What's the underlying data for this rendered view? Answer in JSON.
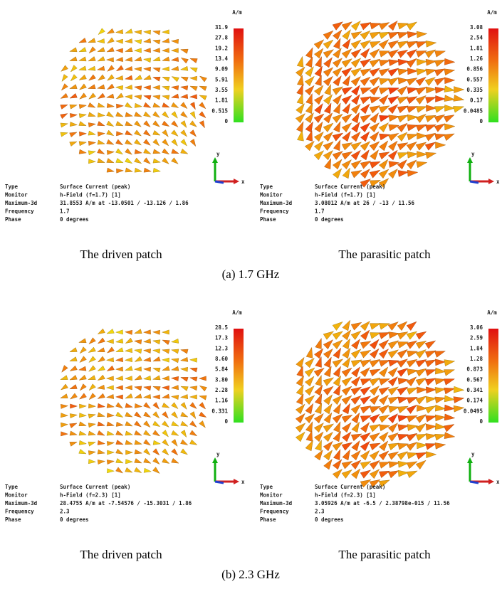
{
  "groups": [
    {
      "caption": "(a) 1.7 GHz",
      "panels": [
        {
          "caption": "The driven patch",
          "unit": "A/m",
          "legend": [
            "31.9",
            "27.8",
            "19.2",
            "13.4",
            "9.09",
            "5.91",
            "3.55",
            "1.81",
            "0.515",
            "0"
          ],
          "info": [
            [
              "Type",
              "Surface Current (peak)"
            ],
            [
              "Monitor",
              "h-Field (f=1.7) [1]"
            ],
            [
              "Maximum-3d",
              "31.8553 A/m at -13.0501 / -13.126 / 1.86"
            ],
            [
              "Frequency",
              "1.7"
            ],
            [
              "Phase",
              "0 degrees"
            ]
          ],
          "axes": [
            "y",
            "x"
          ]
        },
        {
          "caption": "The parasitic patch",
          "unit": "A/m",
          "legend": [
            "3.08",
            "2.54",
            "1.81",
            "1.26",
            "0.856",
            "0.557",
            "0.335",
            "0.17",
            "0.0485",
            "0"
          ],
          "info": [
            [
              "Type",
              "Surface Current (peak)"
            ],
            [
              "Monitor",
              "h-Field (f=1.7) [1]"
            ],
            [
              "Maximum-3d",
              "3.08012 A/m at 26 / -13 / 11.56"
            ],
            [
              "Frequency",
              "1.7"
            ],
            [
              "Phase",
              "0 degrees"
            ]
          ],
          "axes": [
            "y",
            "x"
          ]
        }
      ]
    },
    {
      "caption": "(b) 2.3 GHz",
      "panels": [
        {
          "caption": "The driven patch",
          "unit": "A/m",
          "legend": [
            "28.5",
            "17.3",
            "12.3",
            "8.60",
            "5.84",
            "3.80",
            "2.28",
            "1.16",
            "0.331",
            "0"
          ],
          "info": [
            [
              "Type",
              "Surface Current (peak)"
            ],
            [
              "Monitor",
              "h-Field (f=2.3) [1]"
            ],
            [
              "Maximum-3d",
              "28.4755 A/m at -7.54576 / -15.3031 / 1.86"
            ],
            [
              "Frequency",
              "2.3"
            ],
            [
              "Phase",
              "0 degrees"
            ]
          ],
          "axes": [
            "y",
            "x"
          ]
        },
        {
          "caption": "The parasitic patch",
          "unit": "A/m",
          "legend": [
            "3.06",
            "2.59",
            "1.84",
            "1.28",
            "0.873",
            "0.567",
            "0.341",
            "0.174",
            "0.0495",
            "0"
          ],
          "info": [
            [
              "Type",
              "Surface Current (peak)"
            ],
            [
              "Monitor",
              "h-Field (f=2.3) [1]"
            ],
            [
              "Maximum-3d",
              "3.05926 A/m at -6.5 / 2.38798e-015 / 11.56"
            ],
            [
              "Frequency",
              "2.3"
            ],
            [
              "Phase",
              "0 degrees"
            ]
          ],
          "axes": [
            "y",
            "x"
          ]
        }
      ]
    }
  ]
}
